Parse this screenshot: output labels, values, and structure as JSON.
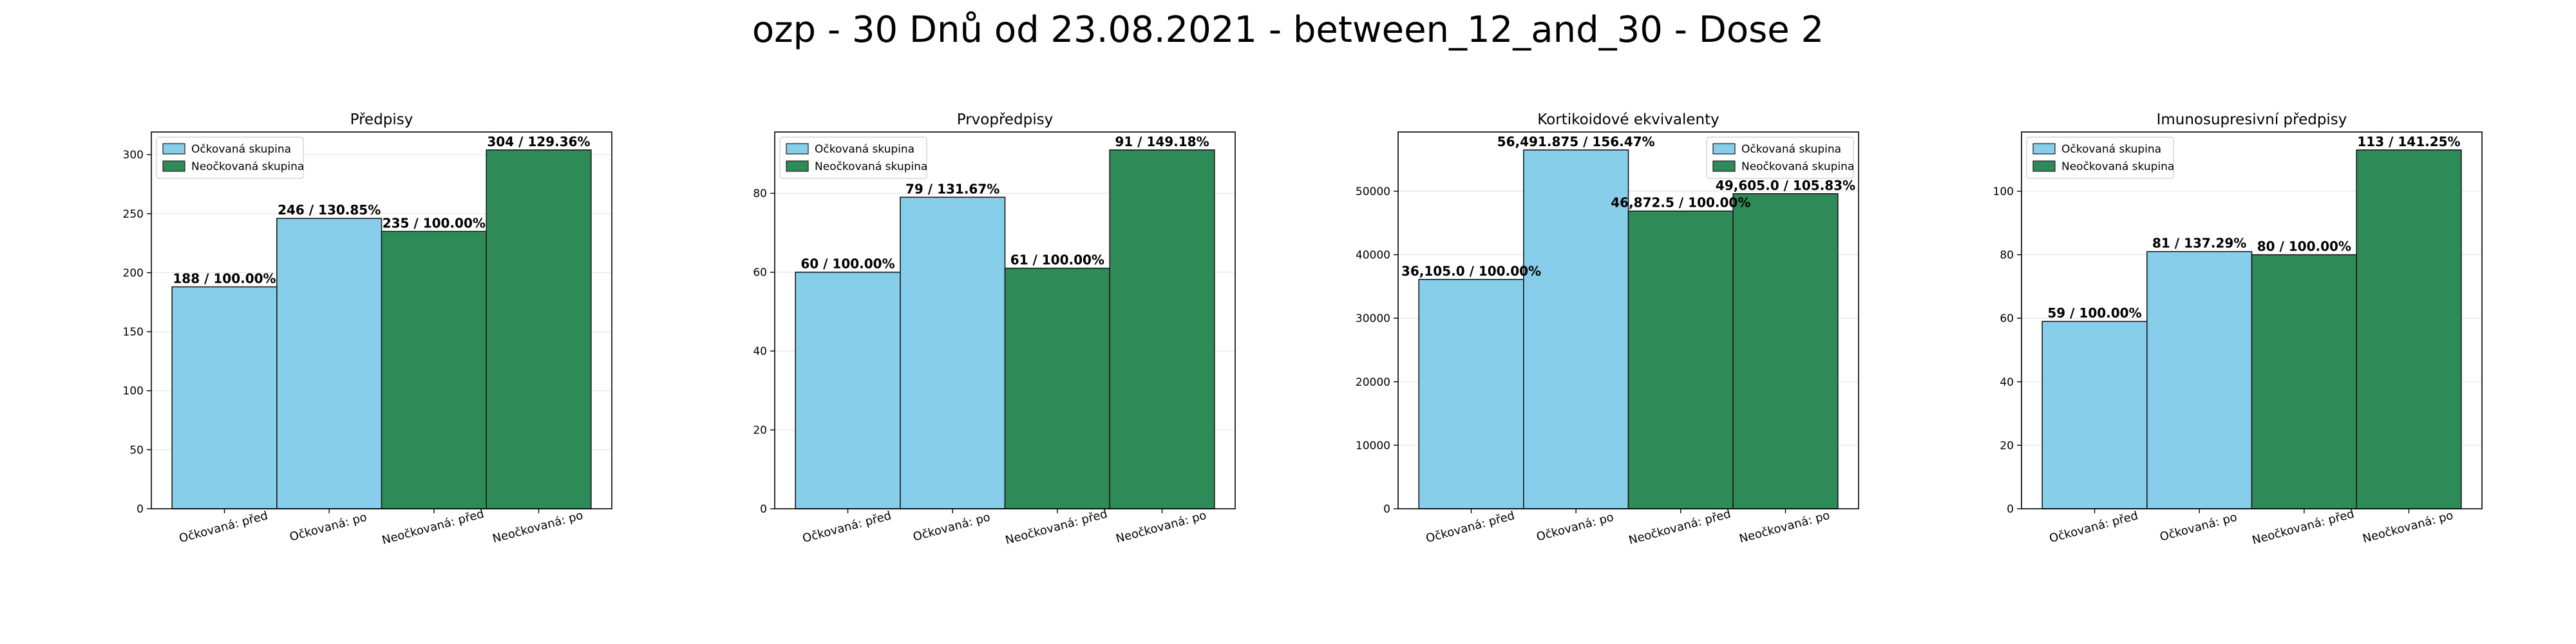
{
  "title": "ozp - 30 Dnů od 23.08.2021 - between_12_and_30 - Dose 2",
  "colors": {
    "vaccinated": "#87ceeb",
    "unvaccinated": "#2e8b57",
    "edge": "#1a1a1a",
    "grid": "#e6e6e6"
  },
  "chart_data": [
    {
      "type": "bar",
      "title": "Předpisy",
      "categories": [
        "Očkovaná: před",
        "Očkovaná: po",
        "Neočkovaná: před",
        "Neočkovaná: po"
      ],
      "values": [
        188,
        246,
        235,
        304
      ],
      "labels": [
        "188 / 100.00%",
        "246 / 130.85%",
        "235 / 100.00%",
        "304 / 129.36%"
      ],
      "groups": [
        "vaccinated",
        "vaccinated",
        "unvaccinated",
        "unvaccinated"
      ],
      "ylim": [
        0,
        319.2
      ],
      "yticks": [
        0,
        50,
        100,
        150,
        200,
        250,
        300
      ],
      "grid": true,
      "legend": {
        "placement": "top-left",
        "entries": [
          "Očkovaná skupina",
          "Neočkovaná skupina"
        ]
      }
    },
    {
      "type": "bar",
      "title": "Prvopředpisy",
      "categories": [
        "Očkovaná: před",
        "Očkovaná: po",
        "Neočkovaná: před",
        "Neočkovaná: po"
      ],
      "values": [
        60,
        79,
        61,
        91
      ],
      "labels": [
        "60 / 100.00%",
        "79 / 131.67%",
        "61 / 100.00%",
        "91 / 149.18%"
      ],
      "groups": [
        "vaccinated",
        "vaccinated",
        "unvaccinated",
        "unvaccinated"
      ],
      "ylim": [
        0,
        95.55
      ],
      "yticks": [
        0,
        20,
        40,
        60,
        80
      ],
      "grid": true,
      "legend": {
        "placement": "top-left",
        "entries": [
          "Očkovaná skupina",
          "Neočkovaná skupina"
        ]
      }
    },
    {
      "type": "bar",
      "title": "Kortikoidové ekvivalenty",
      "categories": [
        "Očkovaná: před",
        "Očkovaná: po",
        "Neočkovaná: před",
        "Neočkovaná: po"
      ],
      "values": [
        36105.0,
        56491.875,
        46872.5,
        49605.0
      ],
      "labels": [
        "36,105.0 / 100.00%",
        "56,491.875 / 156.47%",
        "46,872.5 / 100.00%",
        "49,605.0 / 105.83%"
      ],
      "groups": [
        "vaccinated",
        "vaccinated",
        "unvaccinated",
        "unvaccinated"
      ],
      "ylim": [
        0,
        59316.5
      ],
      "yticks": [
        0,
        10000,
        20000,
        30000,
        40000,
        50000
      ],
      "grid": true,
      "legend": {
        "placement": "top-right",
        "entries": [
          "Očkovaná skupina",
          "Neočkovaná skupina"
        ]
      }
    },
    {
      "type": "bar",
      "title": "Imunosupresivní předpisy",
      "categories": [
        "Očkovaná: před",
        "Očkovaná: po",
        "Neočkovaná: před",
        "Neočkovaná: po"
      ],
      "values": [
        59,
        81,
        80,
        113
      ],
      "labels": [
        "59 / 100.00%",
        "81 / 137.29%",
        "80 / 100.00%",
        "113 / 141.25%"
      ],
      "groups": [
        "vaccinated",
        "vaccinated",
        "unvaccinated",
        "unvaccinated"
      ],
      "ylim": [
        0,
        118.65
      ],
      "yticks": [
        0,
        20,
        40,
        60,
        80,
        100
      ],
      "grid": true,
      "legend": {
        "placement": "top-left",
        "entries": [
          "Očkovaná skupina",
          "Neočkovaná skupina"
        ]
      }
    }
  ]
}
